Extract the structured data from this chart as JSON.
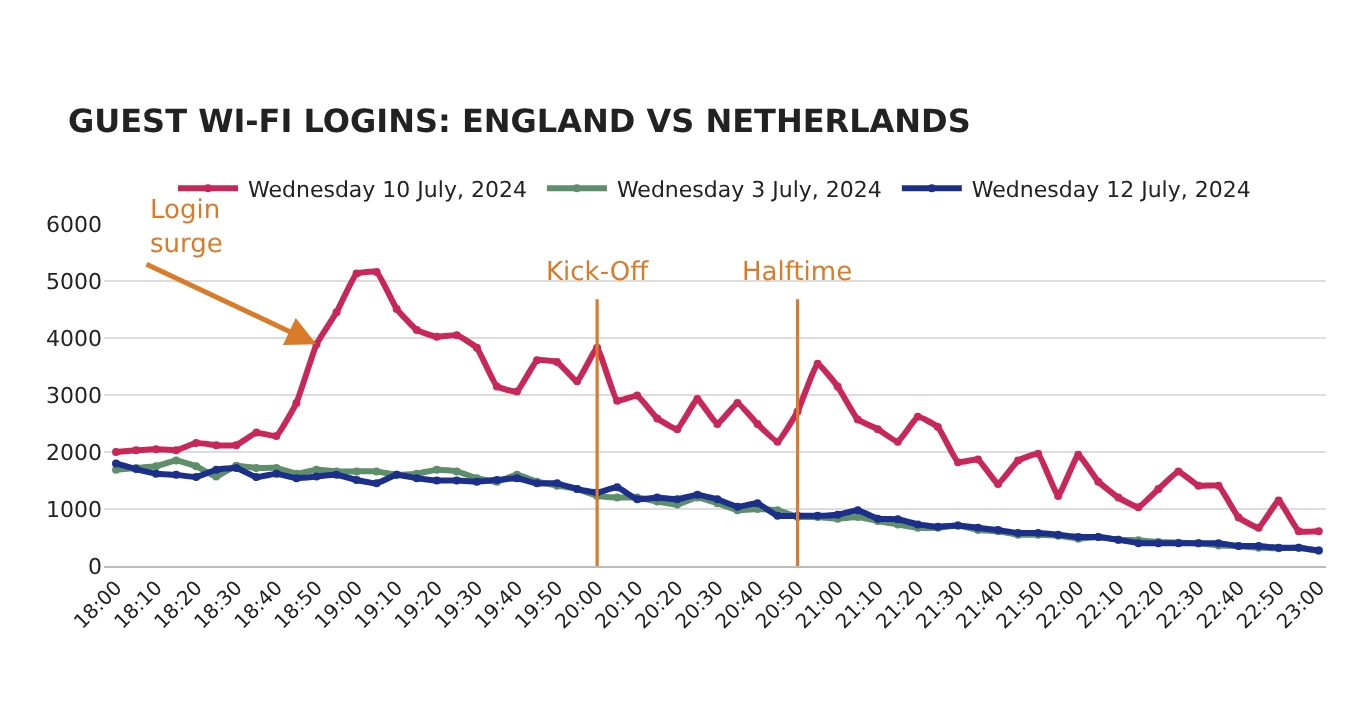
{
  "chart_data": {
    "type": "line",
    "title": "GUEST WI-FI LOGINS: ENGLAND VS NETHERLANDS",
    "x": [
      18,
      18.0833,
      18.1667,
      18.25,
      18.3333,
      18.4167,
      18.5,
      18.5833,
      18.6667,
      18.75,
      18.8333,
      18.9167,
      19,
      19.0833,
      19.1667,
      19.25,
      19.3333,
      19.4167,
      19.5,
      19.5833,
      19.6667,
      19.75,
      19.8333,
      19.9167,
      20,
      20.0833,
      20.1667,
      20.25,
      20.3333,
      20.4167,
      20.5,
      20.5833,
      20.6667,
      20.75,
      20.8333,
      20.9167,
      21,
      21.0833,
      21.1667,
      21.25,
      21.3333,
      21.4167,
      21.5,
      21.5833,
      21.6667,
      21.75,
      21.8333,
      21.9167,
      22,
      22.0833,
      22.1667,
      22.25,
      22.3333,
      22.4167,
      22.5,
      22.5833,
      22.6667,
      22.75,
      22.8333,
      22.9167,
      23
    ],
    "series": [
      {
        "name": "Wednesday 10 July, 2024",
        "color": "#c8275a",
        "values": [
          2000,
          2030,
          2050,
          2030,
          2160,
          2120,
          2120,
          2340,
          2280,
          2860,
          3890,
          4450,
          5130,
          5160,
          4510,
          4140,
          4020,
          4050,
          3830,
          3150,
          3060,
          3610,
          3580,
          3240,
          3830,
          2900,
          2990,
          2590,
          2400,
          2930,
          2490,
          2860,
          2490,
          2180,
          2710,
          3550,
          3150,
          2570,
          2400,
          2180,
          2620,
          2440,
          1820,
          1870,
          1440,
          1850,
          1970,
          1230,
          1950,
          1480,
          1200,
          1030,
          1350,
          1660,
          1410,
          1410,
          850,
          670,
          1150,
          610,
          610
        ]
      },
      {
        "name": "Wednesday 3 July, 2024",
        "color": "#5f8f6a",
        "values": [
          1690,
          1720,
          1750,
          1850,
          1750,
          1570,
          1760,
          1720,
          1720,
          1620,
          1690,
          1660,
          1660,
          1660,
          1600,
          1620,
          1690,
          1660,
          1540,
          1480,
          1600,
          1480,
          1410,
          1350,
          1230,
          1200,
          1200,
          1130,
          1080,
          1200,
          1100,
          980,
          1000,
          980,
          860,
          860,
          830,
          860,
          790,
          730,
          670,
          670,
          710,
          630,
          610,
          550,
          550,
          530,
          480,
          510,
          460,
          450,
          420,
          410,
          400,
          360,
          350,
          320,
          310,
          320,
          270
        ]
      },
      {
        "name": "Wednesday 12 July, 2024",
        "color": "#1c2f8a",
        "values": [
          1800,
          1700,
          1620,
          1600,
          1560,
          1690,
          1720,
          1560,
          1620,
          1540,
          1570,
          1600,
          1510,
          1450,
          1600,
          1540,
          1500,
          1500,
          1480,
          1510,
          1540,
          1450,
          1450,
          1350,
          1290,
          1380,
          1170,
          1200,
          1170,
          1250,
          1170,
          1040,
          1100,
          880,
          880,
          880,
          900,
          980,
          830,
          820,
          730,
          690,
          710,
          670,
          630,
          580,
          580,
          550,
          510,
          510,
          460,
          400,
          400,
          400,
          400,
          400,
          350,
          350,
          320,
          320,
          270
        ]
      }
    ],
    "xlim": [
      17.95,
      23.03
    ],
    "xticks": [
      {
        "value": 18,
        "label": "18:00"
      },
      {
        "value": 18.1667,
        "label": "18:10"
      },
      {
        "value": 18.3333,
        "label": "18:20"
      },
      {
        "value": 18.5,
        "label": "18:30"
      },
      {
        "value": 18.6667,
        "label": "18:40"
      },
      {
        "value": 18.8333,
        "label": "18:50"
      },
      {
        "value": 19,
        "label": "19:00"
      },
      {
        "value": 19.1667,
        "label": "19:10"
      },
      {
        "value": 19.3333,
        "label": "19:20"
      },
      {
        "value": 19.5,
        "label": "19:30"
      },
      {
        "value": 19.6667,
        "label": "19:40"
      },
      {
        "value": 19.8333,
        "label": "19:50"
      },
      {
        "value": 20,
        "label": "20:00"
      },
      {
        "value": 20.1667,
        "label": "20:10"
      },
      {
        "value": 20.3333,
        "label": "20:20"
      },
      {
        "value": 20.5,
        "label": "20:30"
      },
      {
        "value": 20.6667,
        "label": "20:40"
      },
      {
        "value": 20.8333,
        "label": "20:50"
      },
      {
        "value": 21,
        "label": "21:00"
      },
      {
        "value": 21.1667,
        "label": "21:10"
      },
      {
        "value": 21.3333,
        "label": "21:20"
      },
      {
        "value": 21.5,
        "label": "21:30"
      },
      {
        "value": 21.6667,
        "label": "21:40"
      },
      {
        "value": 21.8333,
        "label": "21:50"
      },
      {
        "value": 22,
        "label": "22:00"
      },
      {
        "value": 22.1667,
        "label": "22:10"
      },
      {
        "value": 22.3333,
        "label": "22:20"
      },
      {
        "value": 22.5,
        "label": "22:30"
      },
      {
        "value": 22.6667,
        "label": "22:40"
      },
      {
        "value": 22.8333,
        "label": "22:50"
      },
      {
        "value": 23,
        "label": "23:00"
      }
    ],
    "ylim": [
      0,
      6000
    ],
    "yticks": [
      0,
      1000,
      2000,
      3000,
      4000,
      5000,
      6000
    ],
    "ref_lines": [
      {
        "axis": "x",
        "value": 20,
        "label": "Kick-Off",
        "color": "#d97b29"
      },
      {
        "axis": "x",
        "value": 20.8333,
        "label": "Halftime",
        "color": "#d97b29"
      }
    ],
    "annotations": [
      {
        "text": "Login\nsurge",
        "x": 18.8333,
        "y": 3890
      }
    ],
    "grid": "y",
    "legend": "top",
    "marker": "circle",
    "line_style": "solid"
  }
}
